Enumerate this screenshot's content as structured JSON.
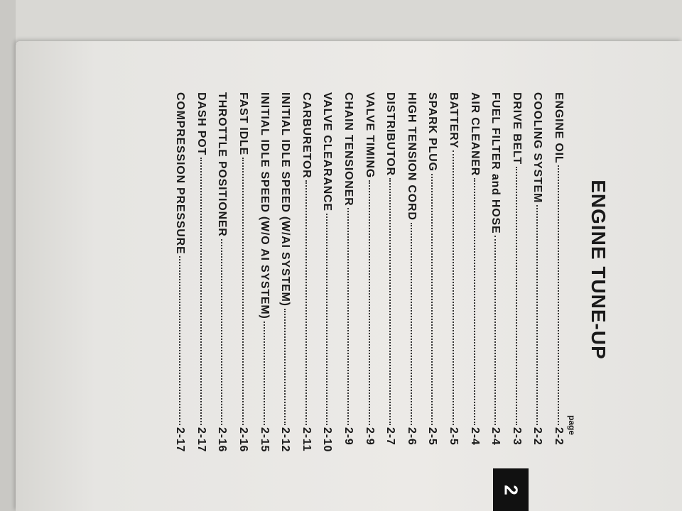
{
  "title": "ENGINE TUNE-UP",
  "page_label": "page",
  "section_tab": "2",
  "entries": [
    {
      "label": "ENGINE OIL",
      "page": "2-2"
    },
    {
      "label": "COOLING SYSTEM",
      "page": "2-2"
    },
    {
      "label": "DRIVE BELT",
      "page": "2-3"
    },
    {
      "label": "FUEL FILTER and HOSE",
      "page": "2-4"
    },
    {
      "label": "AIR CLEANER",
      "page": "2-4"
    },
    {
      "label": "BATTERY",
      "page": "2-5"
    },
    {
      "label": "SPARK PLUG",
      "page": "2-5"
    },
    {
      "label": "HIGH TENSION CORD",
      "page": "2-6"
    },
    {
      "label": "DISTRIBUTOR",
      "page": "2-7"
    },
    {
      "label": "VALVE TIMING",
      "page": "2-9"
    },
    {
      "label": "CHAIN TENSIONER",
      "page": "2-9"
    },
    {
      "label": "VALVE CLEARANCE",
      "page": "2-10"
    },
    {
      "label": "CARBURETOR",
      "page": "2-11"
    },
    {
      "label": "INITIAL IDLE SPEED (W/AI SYSTEM)",
      "page": "2-12"
    },
    {
      "label": "INITIAL IDLE SPEED (W/O AI SYSTEM)",
      "page": "2-15"
    },
    {
      "label": "FAST IDLE",
      "page": "2-16"
    },
    {
      "label": "THROTTLE POSITIONER",
      "page": "2-16"
    },
    {
      "label": "DASH POT",
      "page": "2-17"
    },
    {
      "label": "COMPRESSION PRESSURE",
      "page": "2-17"
    }
  ]
}
